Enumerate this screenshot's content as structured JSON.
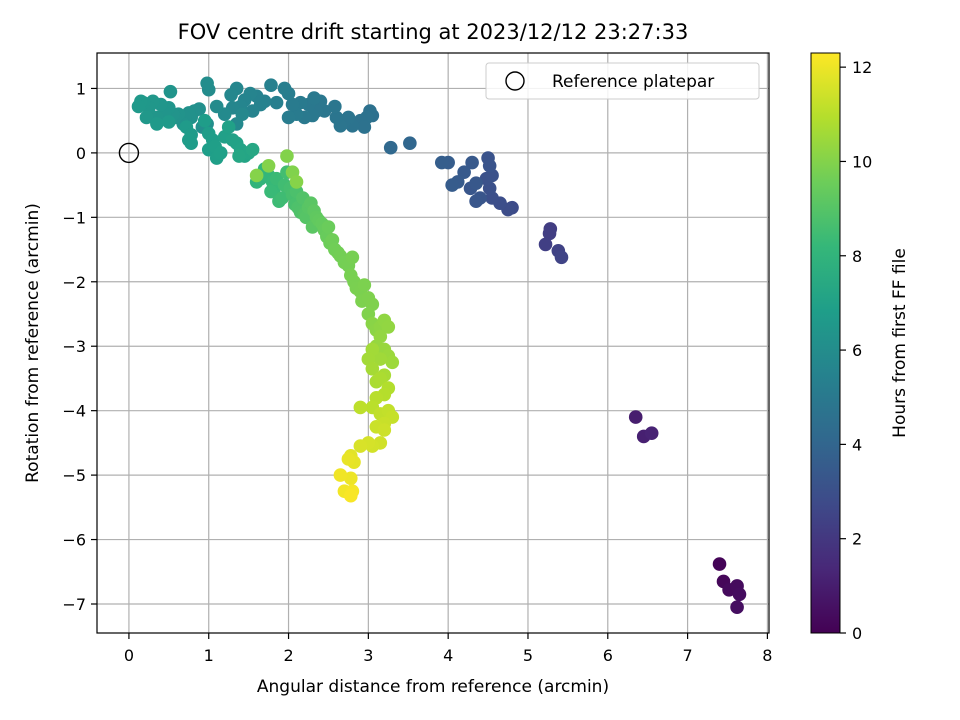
{
  "chart_data": {
    "type": "scatter",
    "title": "FOV centre drift starting at 2023/12/12 23:27:33",
    "xlabel": "Angular distance from reference (arcmin)",
    "ylabel": "Rotation from reference (arcmin)",
    "xlim": [
      -0.4,
      8.02
    ],
    "ylim": [
      -7.45,
      1.55
    ],
    "xticks": [
      0,
      1,
      2,
      3,
      4,
      5,
      6,
      7,
      8
    ],
    "yticks": [
      -7,
      -6,
      -5,
      -4,
      -3,
      -2,
      -1,
      0,
      1
    ],
    "xtick_labels": [
      "0",
      "1",
      "2",
      "3",
      "4",
      "5",
      "6",
      "7",
      "8"
    ],
    "ytick_labels": [
      "−7",
      "−6",
      "−5",
      "−4",
      "−3",
      "−2",
      "−1",
      "0",
      "1"
    ],
    "grid": true,
    "legend": {
      "placement": "top-right",
      "label": "Reference platepar"
    },
    "reference_point": {
      "x": 0,
      "y": 0
    },
    "colorbar": {
      "label": "Hours from first FF file",
      "colormap": "viridis",
      "range": [
        0,
        12.3
      ],
      "ticks": [
        0,
        2,
        4,
        6,
        8,
        10,
        12
      ],
      "tick_labels": [
        "0",
        "2",
        "4",
        "6",
        "8",
        "10",
        "12"
      ]
    },
    "points": [
      [
        7.4,
        -6.38,
        0.1
      ],
      [
        7.45,
        -6.65,
        0.2
      ],
      [
        7.52,
        -6.78,
        0.3
      ],
      [
        7.62,
        -6.72,
        0.35
      ],
      [
        7.65,
        -6.85,
        0.4
      ],
      [
        7.62,
        -7.05,
        0.45
      ],
      [
        6.35,
        -4.1,
        1.0
      ],
      [
        6.45,
        -4.4,
        1.1
      ],
      [
        6.55,
        -4.35,
        1.2
      ],
      [
        5.28,
        -1.18,
        2.2
      ],
      [
        5.27,
        -1.25,
        2.25
      ],
      [
        5.22,
        -1.42,
        2.3
      ],
      [
        5.38,
        -1.52,
        2.4
      ],
      [
        5.42,
        -1.62,
        2.5
      ],
      [
        4.8,
        -0.85,
        2.8
      ],
      [
        4.75,
        -0.88,
        2.85
      ],
      [
        4.65,
        -0.78,
        2.9
      ],
      [
        4.55,
        -0.7,
        2.95
      ],
      [
        4.52,
        -0.55,
        3.0
      ],
      [
        4.48,
        -0.4,
        3.05
      ],
      [
        4.55,
        -0.35,
        3.1
      ],
      [
        4.5,
        -0.08,
        3.15
      ],
      [
        4.52,
        -0.2,
        3.2
      ],
      [
        4.4,
        -0.7,
        3.25
      ],
      [
        4.35,
        -0.75,
        3.28
      ],
      [
        4.28,
        -0.55,
        3.3
      ],
      [
        4.35,
        -0.47,
        3.35
      ],
      [
        4.3,
        -0.15,
        3.4
      ],
      [
        4.2,
        -0.3,
        3.45
      ],
      [
        4.12,
        -0.45,
        3.5
      ],
      [
        4.05,
        -0.5,
        3.55
      ],
      [
        4.0,
        -0.15,
        3.6
      ],
      [
        3.92,
        -0.15,
        3.65
      ],
      [
        3.52,
        0.15,
        4.05
      ],
      [
        3.28,
        0.08,
        4.15
      ],
      [
        3.05,
        0.58,
        4.5
      ],
      [
        3.02,
        0.65,
        4.55
      ],
      [
        2.98,
        0.55,
        4.6
      ],
      [
        2.9,
        0.5,
        4.62
      ],
      [
        2.95,
        0.4,
        4.65
      ],
      [
        2.8,
        0.42,
        4.7
      ],
      [
        2.75,
        0.55,
        4.72
      ],
      [
        2.7,
        0.5,
        4.75
      ],
      [
        2.65,
        0.42,
        4.78
      ],
      [
        2.6,
        0.55,
        4.8
      ],
      [
        2.58,
        0.72,
        4.82
      ],
      [
        2.45,
        0.65,
        4.85
      ],
      [
        2.4,
        0.8,
        4.88
      ],
      [
        2.35,
        0.65,
        4.9
      ],
      [
        2.3,
        0.58,
        4.92
      ],
      [
        2.25,
        0.75,
        4.95
      ],
      [
        2.32,
        0.85,
        4.98
      ],
      [
        2.2,
        0.55,
        5.0
      ],
      [
        2.15,
        0.78,
        5.05
      ],
      [
        2.1,
        0.6,
        5.1
      ],
      [
        2.05,
        0.75,
        5.12
      ],
      [
        2.0,
        0.55,
        5.15
      ],
      [
        2.0,
        0.92,
        5.2
      ],
      [
        1.95,
        1.0,
        5.25
      ],
      [
        1.85,
        0.78,
        5.3
      ],
      [
        1.78,
        1.05,
        5.35
      ],
      [
        1.7,
        0.8,
        5.4
      ],
      [
        1.65,
        0.75,
        5.45
      ],
      [
        1.6,
        0.88,
        5.48
      ],
      [
        1.55,
        0.65,
        5.5
      ],
      [
        1.52,
        0.92,
        5.55
      ],
      [
        1.45,
        0.82,
        5.58
      ],
      [
        1.4,
        0.72,
        5.6
      ],
      [
        1.35,
        1.0,
        5.65
      ],
      [
        1.3,
        0.7,
        5.68
      ],
      [
        1.28,
        0.9,
        5.7
      ],
      [
        1.42,
        0.6,
        5.75
      ],
      [
        1.35,
        0.45,
        5.8
      ],
      [
        1.2,
        0.6,
        5.85
      ],
      [
        1.1,
        0.72,
        5.9
      ],
      [
        1.0,
        0.98,
        5.95
      ],
      [
        0.98,
        1.08,
        6.0
      ],
      [
        0.98,
        0.45,
        6.05
      ],
      [
        0.92,
        0.4,
        6.1
      ],
      [
        0.88,
        0.68,
        6.12
      ],
      [
        0.82,
        0.65,
        6.15
      ],
      [
        0.78,
        0.55,
        6.18
      ],
      [
        0.75,
        0.62,
        6.2
      ],
      [
        0.7,
        0.55,
        6.22
      ],
      [
        0.68,
        0.45,
        6.25
      ],
      [
        0.62,
        0.6,
        6.28
      ],
      [
        0.58,
        0.55,
        6.3
      ],
      [
        0.55,
        0.6,
        6.33
      ],
      [
        0.52,
        0.95,
        6.35
      ],
      [
        0.5,
        0.7,
        6.38
      ],
      [
        0.45,
        0.62,
        6.4
      ],
      [
        0.4,
        0.75,
        6.42
      ],
      [
        0.35,
        0.55,
        6.45
      ],
      [
        0.3,
        0.8,
        6.48
      ],
      [
        0.25,
        0.7,
        6.5
      ],
      [
        0.22,
        0.55,
        6.52
      ],
      [
        0.18,
        0.78,
        6.55
      ],
      [
        0.15,
        0.8,
        6.58
      ],
      [
        0.12,
        0.72,
        6.6
      ],
      [
        0.35,
        0.45,
        6.62
      ],
      [
        0.5,
        0.48,
        6.65
      ],
      [
        0.72,
        0.4,
        6.68
      ],
      [
        0.78,
        0.28,
        6.7
      ],
      [
        0.75,
        0.2,
        6.72
      ],
      [
        0.78,
        0.15,
        6.75
      ],
      [
        0.95,
        0.5,
        6.78
      ],
      [
        1.0,
        0.3,
        6.8
      ],
      [
        1.05,
        0.2,
        6.82
      ],
      [
        1.0,
        0.05,
        6.85
      ],
      [
        1.08,
        0.1,
        6.88
      ],
      [
        1.1,
        -0.08,
        6.9
      ],
      [
        1.15,
        0.0,
        6.92
      ],
      [
        1.2,
        0.25,
        6.95
      ],
      [
        1.25,
        0.4,
        6.98
      ],
      [
        1.3,
        0.2,
        7.0
      ],
      [
        1.35,
        0.15,
        7.05
      ],
      [
        1.4,
        0.05,
        7.1
      ],
      [
        1.45,
        -0.05,
        7.15
      ],
      [
        1.5,
        0.0,
        7.2
      ],
      [
        1.38,
        -0.05,
        7.25
      ],
      [
        1.55,
        0.05,
        7.3
      ],
      [
        1.6,
        -0.45,
        8.0
      ],
      [
        1.65,
        -0.4,
        8.05
      ],
      [
        1.7,
        -0.25,
        8.1
      ],
      [
        1.75,
        -0.35,
        8.15
      ],
      [
        1.8,
        -0.45,
        8.2
      ],
      [
        1.82,
        -0.55,
        8.25
      ],
      [
        1.78,
        -0.6,
        8.3
      ],
      [
        1.85,
        -0.4,
        8.35
      ],
      [
        1.88,
        -0.75,
        8.4
      ],
      [
        1.92,
        -0.7,
        8.45
      ],
      [
        1.95,
        -0.5,
        8.5
      ],
      [
        1.98,
        -0.3,
        8.55
      ],
      [
        2.02,
        -0.55,
        8.6
      ],
      [
        2.05,
        -0.65,
        8.65
      ],
      [
        2.08,
        -0.8,
        8.7
      ],
      [
        2.1,
        -0.6,
        8.75
      ],
      [
        2.12,
        -0.85,
        8.8
      ],
      [
        2.15,
        -0.92,
        8.85
      ],
      [
        2.18,
        -0.7,
        8.9
      ],
      [
        2.2,
        -0.95,
        8.95
      ],
      [
        2.22,
        -1.0,
        9.0
      ],
      [
        2.25,
        -0.85,
        9.05
      ],
      [
        2.28,
        -0.78,
        9.1
      ],
      [
        2.3,
        -1.15,
        9.15
      ],
      [
        2.32,
        -0.9,
        9.2
      ],
      [
        2.35,
        -1.0,
        9.25
      ],
      [
        2.38,
        -1.05,
        9.3
      ],
      [
        2.42,
        -1.1,
        9.35
      ],
      [
        2.45,
        -1.2,
        9.4
      ],
      [
        2.48,
        -1.3,
        9.45
      ],
      [
        2.5,
        -1.15,
        9.5
      ],
      [
        2.52,
        -1.4,
        9.55
      ],
      [
        2.55,
        -1.35,
        9.6
      ],
      [
        2.58,
        -1.5,
        9.62
      ],
      [
        2.62,
        -1.55,
        9.65
      ],
      [
        2.65,
        -1.6,
        9.68
      ],
      [
        2.7,
        -1.7,
        9.7
      ],
      [
        2.75,
        -1.75,
        9.72
      ],
      [
        2.8,
        -1.62,
        9.75
      ],
      [
        2.78,
        -1.9,
        9.78
      ],
      [
        2.82,
        -2.0,
        9.8
      ],
      [
        2.85,
        -2.1,
        9.82
      ],
      [
        2.9,
        -2.15,
        9.84
      ],
      [
        2.95,
        -2.05,
        9.86
      ],
      [
        2.92,
        -2.3,
        9.88
      ],
      [
        3.0,
        -2.25,
        9.9
      ],
      [
        3.05,
        -2.35,
        9.92
      ],
      [
        3.0,
        -2.5,
        9.94
      ],
      [
        2.05,
        -0.3,
        9.96
      ],
      [
        1.98,
        -0.05,
        9.98
      ],
      [
        1.75,
        -0.2,
        10.0
      ],
      [
        1.6,
        -0.35,
        10.02
      ],
      [
        2.1,
        -0.45,
        10.05
      ],
      [
        3.05,
        -2.65,
        10.1
      ],
      [
        3.1,
        -2.75,
        10.15
      ],
      [
        3.15,
        -2.7,
        10.2
      ],
      [
        3.2,
        -2.6,
        10.25
      ],
      [
        3.25,
        -2.7,
        10.28
      ],
      [
        3.15,
        -2.85,
        10.3
      ],
      [
        3.1,
        -3.0,
        10.35
      ],
      [
        3.2,
        -3.05,
        10.4
      ],
      [
        3.25,
        -3.15,
        10.45
      ],
      [
        3.3,
        -3.25,
        10.5
      ],
      [
        3.15,
        -3.2,
        10.55
      ],
      [
        3.05,
        -3.05,
        10.58
      ],
      [
        3.0,
        -3.2,
        10.6
      ],
      [
        3.05,
        -3.35,
        10.65
      ],
      [
        3.2,
        -3.45,
        10.7
      ],
      [
        3.1,
        -3.55,
        10.75
      ],
      [
        3.15,
        -3.5,
        10.78
      ],
      [
        3.25,
        -3.65,
        10.9
      ],
      [
        3.2,
        -3.75,
        10.95
      ],
      [
        3.1,
        -3.8,
        11.0
      ],
      [
        3.05,
        -3.95,
        11.05
      ],
      [
        2.9,
        -3.95,
        11.1
      ],
      [
        3.15,
        -4.05,
        11.15
      ],
      [
        3.25,
        -4.0,
        11.2
      ],
      [
        3.3,
        -4.1,
        11.25
      ],
      [
        3.2,
        -4.2,
        11.3
      ],
      [
        3.1,
        -4.25,
        11.35
      ],
      [
        3.2,
        -4.3,
        11.4
      ],
      [
        3.15,
        -4.5,
        11.45
      ],
      [
        3.05,
        -4.55,
        11.5
      ],
      [
        3.0,
        -4.5,
        11.55
      ],
      [
        2.9,
        -4.55,
        11.6
      ],
      [
        2.78,
        -4.7,
        11.8
      ],
      [
        2.82,
        -4.8,
        11.85
      ],
      [
        2.75,
        -4.75,
        11.9
      ],
      [
        2.78,
        -5.05,
        12.0
      ],
      [
        2.65,
        -5.0,
        12.05
      ],
      [
        2.7,
        -5.25,
        12.1
      ],
      [
        2.8,
        -5.25,
        12.15
      ],
      [
        2.78,
        -5.32,
        12.2
      ]
    ]
  }
}
